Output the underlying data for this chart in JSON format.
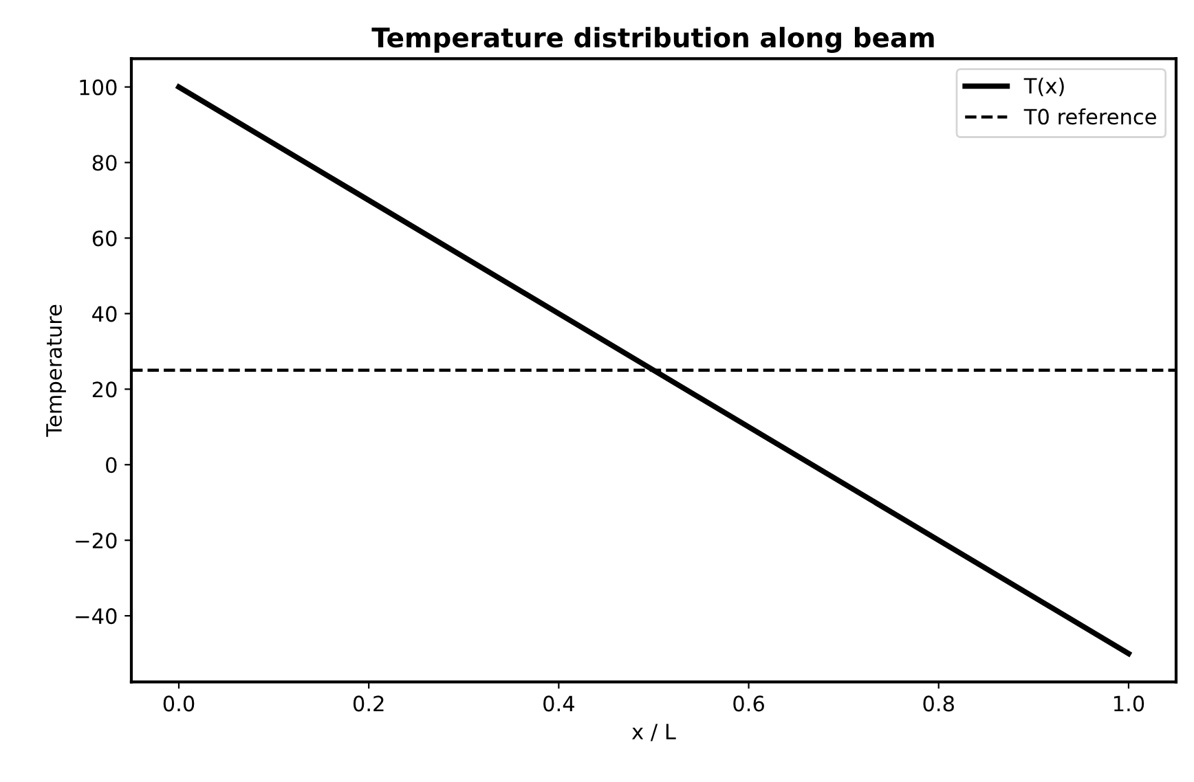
{
  "chart_data": {
    "type": "line",
    "title": "Temperature distribution along beam",
    "xlabel": "x / L",
    "ylabel": "Temperature",
    "x": [
      0.0,
      1.0
    ],
    "series": [
      {
        "name": "T(x)",
        "color": "#000000",
        "values": [
          100,
          -50
        ]
      }
    ],
    "ref_lines": [
      {
        "axis": "y",
        "value": 25,
        "label": "T0 reference",
        "color": "#000000",
        "line_style": "dashed"
      }
    ],
    "xlim": [
      -0.05,
      1.05
    ],
    "xticks": [
      {
        "value": 0,
        "label": "0.0"
      },
      {
        "value": 0.2,
        "label": "0.2"
      },
      {
        "value": 0.4,
        "label": "0.4"
      },
      {
        "value": 0.6,
        "label": "0.6"
      },
      {
        "value": 0.8,
        "label": "0.8"
      },
      {
        "value": 1.0,
        "label": "1.0"
      }
    ],
    "ylim": [
      -57.5,
      107.5
    ],
    "yticks": [
      {
        "value": -40,
        "label": "−40"
      },
      {
        "value": -20,
        "label": "−20"
      },
      0,
      20,
      40,
      60,
      80,
      100
    ],
    "grid": false,
    "legend": "top right",
    "line_style": "solid",
    "marker": "none"
  }
}
